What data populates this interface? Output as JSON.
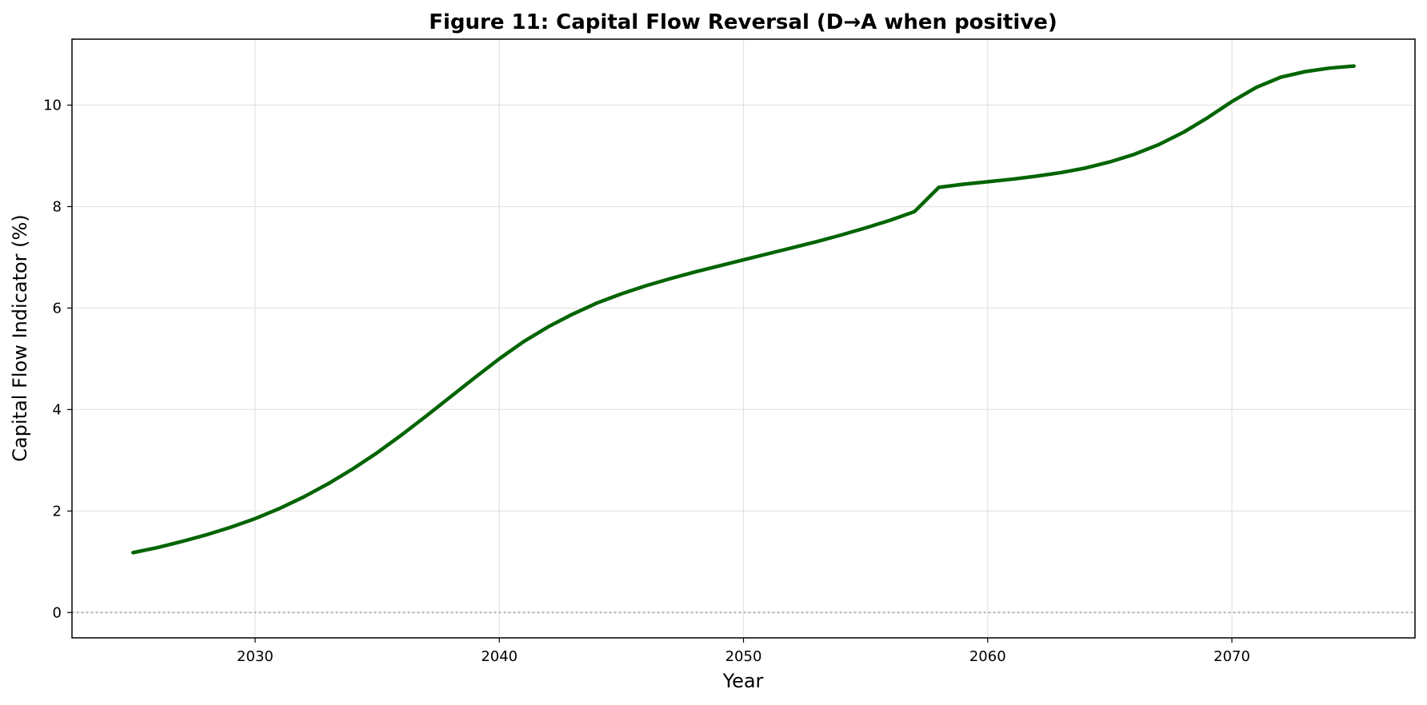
{
  "chart_data": {
    "type": "line",
    "title": "Figure 11: Capital Flow Reversal (D→A when positive)",
    "xlabel": "Year",
    "ylabel": "Capital Flow Indicator (%)",
    "xlim": [
      2022.5,
      2077.5
    ],
    "ylim": [
      -0.5,
      11.3
    ],
    "xticks": [
      2030,
      2040,
      2050,
      2060,
      2070
    ],
    "yticks": [
      0,
      2,
      4,
      6,
      8,
      10
    ],
    "grid": true,
    "legend": "none",
    "reference_line": {
      "y": 0,
      "style": "dotted",
      "color": "#aaaaaa"
    },
    "series": [
      {
        "color": "#006400",
        "x": [
          2025,
          2026,
          2027,
          2028,
          2029,
          2030,
          2031,
          2032,
          2033,
          2034,
          2035,
          2036,
          2037,
          2038,
          2039,
          2040,
          2041,
          2042,
          2043,
          2044,
          2045,
          2046,
          2047,
          2048,
          2049,
          2050,
          2051,
          2052,
          2053,
          2054,
          2055,
          2056,
          2057,
          2058,
          2059,
          2060,
          2061,
          2062,
          2063,
          2064,
          2065,
          2066,
          2067,
          2068,
          2069,
          2070,
          2071,
          2072,
          2073,
          2074,
          2075
        ],
        "y": [
          1.18,
          1.28,
          1.4,
          1.53,
          1.68,
          1.85,
          2.05,
          2.28,
          2.54,
          2.83,
          3.15,
          3.5,
          3.87,
          4.25,
          4.63,
          5.0,
          5.34,
          5.63,
          5.88,
          6.1,
          6.28,
          6.44,
          6.58,
          6.71,
          6.83,
          6.95,
          7.07,
          7.19,
          7.31,
          7.44,
          7.58,
          7.73,
          7.9,
          8.38,
          8.44,
          8.49,
          8.54,
          8.6,
          8.67,
          8.76,
          8.88,
          9.03,
          9.22,
          9.46,
          9.75,
          10.07,
          10.35,
          10.55,
          10.66,
          10.73,
          10.77
        ]
      }
    ]
  }
}
